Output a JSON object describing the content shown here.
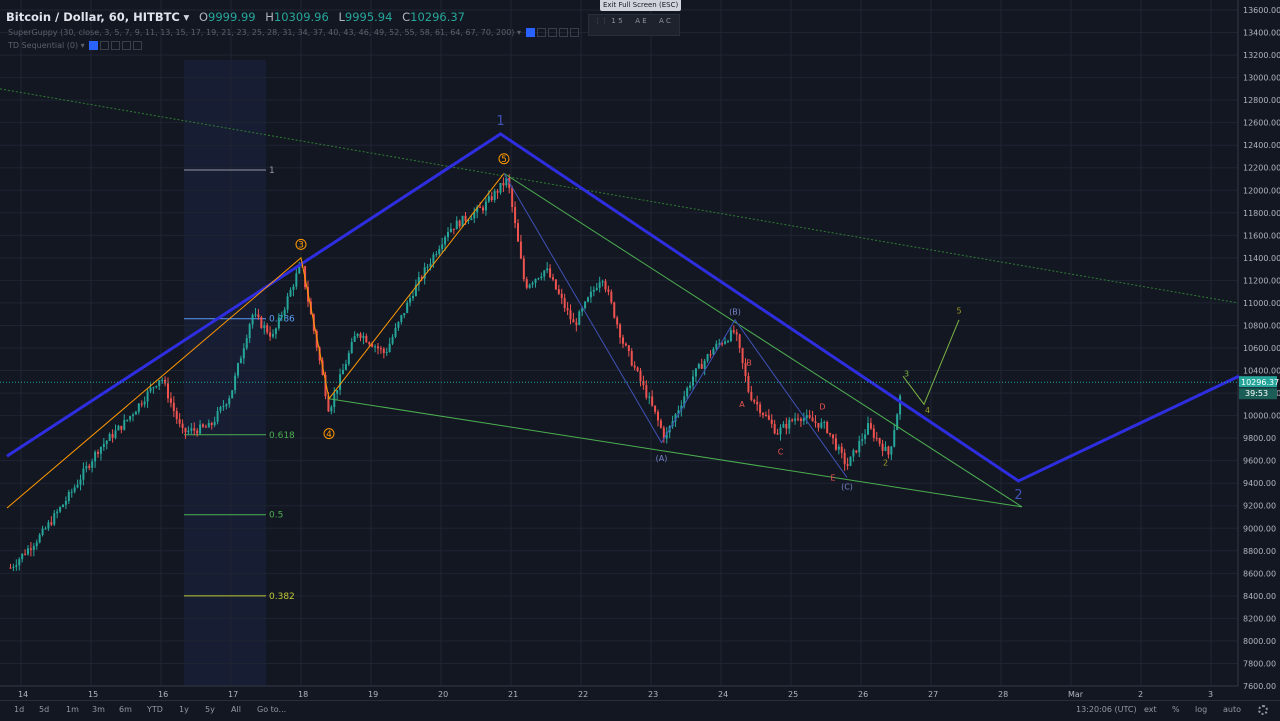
{
  "header": {
    "symbol": "Bitcoin / Dollar, 60, HITBTC",
    "o_label": "O",
    "o_value": "9999.99",
    "h_label": "H",
    "h_value": "10309.96",
    "l_label": "L",
    "l_value": "9995.94",
    "c_label": "C",
    "c_value": "10296.37"
  },
  "indicators": [
    {
      "label": "SuperGuppy (30, close, 3, 5, 7, 9, 11, 13, 15, 17, 19, 21, 23, 25, 28, 31, 34, 37, 40, 43, 46, 49, 52, 55, 58, 61, 64, 67, 70, 200)"
    },
    {
      "label": "TD Sequential (0)"
    }
  ],
  "toolbar": {
    "exit_fullscreen": "Exit Full Screen (ESC)",
    "tools": [
      "1 5",
      "A E",
      "A C"
    ]
  },
  "bottom_bar": {
    "ranges": [
      "1d",
      "5d",
      "1m",
      "3m",
      "6m",
      "YTD",
      "1y",
      "5y",
      "All",
      "Go to..."
    ],
    "time": "13:20:06 (UTC)",
    "options": [
      "ext",
      "%",
      "log",
      "auto"
    ]
  },
  "colors": {
    "background": "#131722",
    "grid": "#1f2433",
    "up": "#26a69a",
    "down": "#ef5350",
    "trend_blue": "#2e2ee0",
    "trend_green": "#4caf50",
    "orange": "#ff9800",
    "price_label": "#26a69a"
  },
  "chart_data": {
    "type": "candlestick",
    "x_ticks": [
      "14",
      "15",
      "16",
      "17",
      "18",
      "19",
      "20",
      "21",
      "22",
      "23",
      "24",
      "25",
      "26",
      "27",
      "28",
      "Mar",
      "2",
      "3"
    ],
    "y_ticks": [
      7600,
      7800,
      8000,
      8200,
      8400,
      8600,
      8800,
      9000,
      9200,
      9400,
      9600,
      9800,
      10000,
      10200,
      10400,
      10600,
      10800,
      11000,
      11200,
      11400,
      11600,
      11800,
      12000,
      12200,
      12400,
      12600,
      12800,
      13000,
      13200,
      13400,
      13600
    ],
    "y_range": [
      7600,
      13600
    ],
    "last_price": "10296.37",
    "countdown": "39:53",
    "series_close_path": [
      {
        "day": 13.85,
        "price": 8650
      },
      {
        "day": 14.3,
        "price": 8950
      },
      {
        "day": 14.7,
        "price": 9300
      },
      {
        "day": 15.1,
        "price": 9700
      },
      {
        "day": 15.5,
        "price": 9950
      },
      {
        "day": 16.0,
        "price": 10350
      },
      {
        "day": 16.3,
        "price": 9850
      },
      {
        "day": 16.7,
        "price": 9900
      },
      {
        "day": 17.0,
        "price": 10200
      },
      {
        "day": 17.3,
        "price": 10900
      },
      {
        "day": 17.6,
        "price": 10700
      },
      {
        "day": 18.0,
        "price": 11350
      },
      {
        "day": 18.4,
        "price": 10050
      },
      {
        "day": 18.8,
        "price": 10750
      },
      {
        "day": 19.2,
        "price": 10550
      },
      {
        "day": 19.6,
        "price": 11100
      },
      {
        "day": 20.1,
        "price": 11650
      },
      {
        "day": 20.6,
        "price": 11850
      },
      {
        "day": 20.95,
        "price": 12100
      },
      {
        "day": 21.2,
        "price": 11150
      },
      {
        "day": 21.5,
        "price": 11300
      },
      {
        "day": 21.9,
        "price": 10800
      },
      {
        "day": 22.3,
        "price": 11250
      },
      {
        "day": 22.6,
        "price": 10650
      },
      {
        "day": 23.0,
        "price": 10100
      },
      {
        "day": 23.2,
        "price": 9800
      },
      {
        "day": 23.6,
        "price": 10350
      },
      {
        "day": 23.9,
        "price": 10600
      },
      {
        "day": 24.2,
        "price": 10750
      },
      {
        "day": 24.4,
        "price": 10200
      },
      {
        "day": 24.8,
        "price": 9850
      },
      {
        "day": 25.1,
        "price": 10000
      },
      {
        "day": 25.5,
        "price": 9900
      },
      {
        "day": 25.8,
        "price": 9550
      },
      {
        "day": 26.1,
        "price": 9900
      },
      {
        "day": 26.4,
        "price": 9650
      },
      {
        "day": 26.6,
        "price": 10296
      }
    ],
    "annotations": {
      "elliott_main": [
        "1",
        "2"
      ],
      "impulse": [
        "3",
        "4",
        "5"
      ],
      "corrective": [
        "(A)",
        "(B)",
        "(C)"
      ],
      "triangle": [
        "A",
        "B",
        "C",
        "D",
        "E"
      ],
      "projection": [
        "2",
        "3",
        "4",
        "5"
      ],
      "fib": [
        {
          "label": "1",
          "price": 12180
        },
        {
          "label": "0.786",
          "price": 10860
        },
        {
          "label": "0.618",
          "price": 9830
        },
        {
          "label": "0.5",
          "price": 9120
        },
        {
          "label": "0.382",
          "price": 8400
        }
      ]
    }
  }
}
